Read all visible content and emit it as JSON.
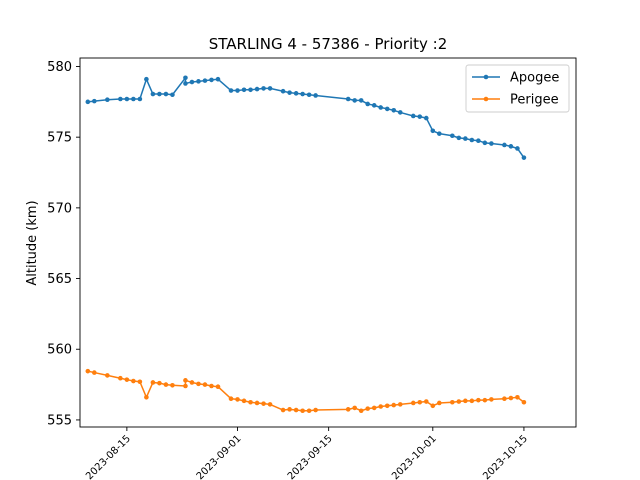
{
  "chart_data": {
    "type": "line",
    "title": "STARLING 4 - 57386 - Priority :2",
    "xlabel": "",
    "ylabel": "Altitude (km)",
    "x_range": [
      "2023-08-07",
      "2023-10-24"
    ],
    "ylim": [
      554.5,
      580.6
    ],
    "y_ticks": [
      555,
      560,
      565,
      570,
      575,
      580
    ],
    "x_ticks": [
      "2023-08-15",
      "2023-09-01",
      "2023-09-15",
      "2023-10-01",
      "2023-10-15"
    ],
    "grid": false,
    "legend_position": "upper-right",
    "series": [
      {
        "name": "Apogee",
        "color": "#1f77b4",
        "points": [
          [
            "2023-08-09",
            577.5
          ],
          [
            "2023-08-10",
            577.55
          ],
          [
            "2023-08-12",
            577.65
          ],
          [
            "2023-08-14",
            577.7
          ],
          [
            "2023-08-15",
            577.7
          ],
          [
            "2023-08-16",
            577.7
          ],
          [
            "2023-08-17",
            577.7
          ],
          [
            "2023-08-18",
            579.1
          ],
          [
            "2023-08-19",
            578.05
          ],
          [
            "2023-08-20",
            578.05
          ],
          [
            "2023-08-21",
            578.05
          ],
          [
            "2023-08-22",
            578.0
          ],
          [
            "2023-08-24",
            579.2
          ],
          [
            "2023-08-24",
            578.8
          ],
          [
            "2023-08-25",
            578.9
          ],
          [
            "2023-08-26",
            578.95
          ],
          [
            "2023-08-27",
            579.0
          ],
          [
            "2023-08-28",
            579.05
          ],
          [
            "2023-08-29",
            579.1
          ],
          [
            "2023-08-31",
            578.3
          ],
          [
            "2023-09-01",
            578.3
          ],
          [
            "2023-09-02",
            578.35
          ],
          [
            "2023-09-03",
            578.35
          ],
          [
            "2023-09-04",
            578.4
          ],
          [
            "2023-09-05",
            578.45
          ],
          [
            "2023-09-06",
            578.45
          ],
          [
            "2023-09-08",
            578.25
          ],
          [
            "2023-09-09",
            578.15
          ],
          [
            "2023-09-10",
            578.1
          ],
          [
            "2023-09-11",
            578.05
          ],
          [
            "2023-09-12",
            578.0
          ],
          [
            "2023-09-13",
            577.95
          ],
          [
            "2023-09-18",
            577.7
          ],
          [
            "2023-09-19",
            577.6
          ],
          [
            "2023-09-20",
            577.6
          ],
          [
            "2023-09-21",
            577.35
          ],
          [
            "2023-09-22",
            577.25
          ],
          [
            "2023-09-23",
            577.1
          ],
          [
            "2023-09-24",
            577.0
          ],
          [
            "2023-09-25",
            576.9
          ],
          [
            "2023-09-26",
            576.75
          ],
          [
            "2023-09-28",
            576.5
          ],
          [
            "2023-09-29",
            576.45
          ],
          [
            "2023-09-30",
            576.35
          ],
          [
            "2023-10-01",
            575.45
          ],
          [
            "2023-10-02",
            575.25
          ],
          [
            "2023-10-04",
            575.1
          ],
          [
            "2023-10-05",
            574.95
          ],
          [
            "2023-10-06",
            574.9
          ],
          [
            "2023-10-07",
            574.8
          ],
          [
            "2023-10-08",
            574.75
          ],
          [
            "2023-10-09",
            574.6
          ],
          [
            "2023-10-10",
            574.55
          ],
          [
            "2023-10-12",
            574.45
          ],
          [
            "2023-10-13",
            574.35
          ],
          [
            "2023-10-14",
            574.2
          ],
          [
            "2023-10-15",
            573.55
          ]
        ]
      },
      {
        "name": "Perigee",
        "color": "#ff7f0e",
        "points": [
          [
            "2023-08-09",
            558.45
          ],
          [
            "2023-08-10",
            558.35
          ],
          [
            "2023-08-12",
            558.15
          ],
          [
            "2023-08-14",
            557.95
          ],
          [
            "2023-08-15",
            557.85
          ],
          [
            "2023-08-16",
            557.75
          ],
          [
            "2023-08-17",
            557.7
          ],
          [
            "2023-08-18",
            556.6
          ],
          [
            "2023-08-19",
            557.65
          ],
          [
            "2023-08-20",
            557.6
          ],
          [
            "2023-08-21",
            557.5
          ],
          [
            "2023-08-22",
            557.45
          ],
          [
            "2023-08-24",
            557.4
          ],
          [
            "2023-08-24",
            557.8
          ],
          [
            "2023-08-25",
            557.65
          ],
          [
            "2023-08-26",
            557.55
          ],
          [
            "2023-08-27",
            557.5
          ],
          [
            "2023-08-28",
            557.4
          ],
          [
            "2023-08-29",
            557.35
          ],
          [
            "2023-08-31",
            556.5
          ],
          [
            "2023-09-01",
            556.45
          ],
          [
            "2023-09-02",
            556.35
          ],
          [
            "2023-09-03",
            556.25
          ],
          [
            "2023-09-04",
            556.2
          ],
          [
            "2023-09-05",
            556.15
          ],
          [
            "2023-09-06",
            556.1
          ],
          [
            "2023-09-08",
            555.7
          ],
          [
            "2023-09-09",
            555.75
          ],
          [
            "2023-09-10",
            555.7
          ],
          [
            "2023-09-11",
            555.65
          ],
          [
            "2023-09-12",
            555.65
          ],
          [
            "2023-09-13",
            555.7
          ],
          [
            "2023-09-18",
            555.75
          ],
          [
            "2023-09-19",
            555.85
          ],
          [
            "2023-09-20",
            555.65
          ],
          [
            "2023-09-21",
            555.8
          ],
          [
            "2023-09-22",
            555.85
          ],
          [
            "2023-09-23",
            555.95
          ],
          [
            "2023-09-24",
            556.0
          ],
          [
            "2023-09-25",
            556.05
          ],
          [
            "2023-09-26",
            556.1
          ],
          [
            "2023-09-28",
            556.2
          ],
          [
            "2023-09-29",
            556.25
          ],
          [
            "2023-09-30",
            556.3
          ],
          [
            "2023-10-01",
            556.0
          ],
          [
            "2023-10-02",
            556.2
          ],
          [
            "2023-10-04",
            556.25
          ],
          [
            "2023-10-05",
            556.3
          ],
          [
            "2023-10-06",
            556.35
          ],
          [
            "2023-10-07",
            556.35
          ],
          [
            "2023-10-08",
            556.4
          ],
          [
            "2023-10-09",
            556.4
          ],
          [
            "2023-10-10",
            556.45
          ],
          [
            "2023-10-12",
            556.5
          ],
          [
            "2023-10-13",
            556.55
          ],
          [
            "2023-10-14",
            556.6
          ],
          [
            "2023-10-15",
            556.25
          ]
        ]
      }
    ]
  }
}
